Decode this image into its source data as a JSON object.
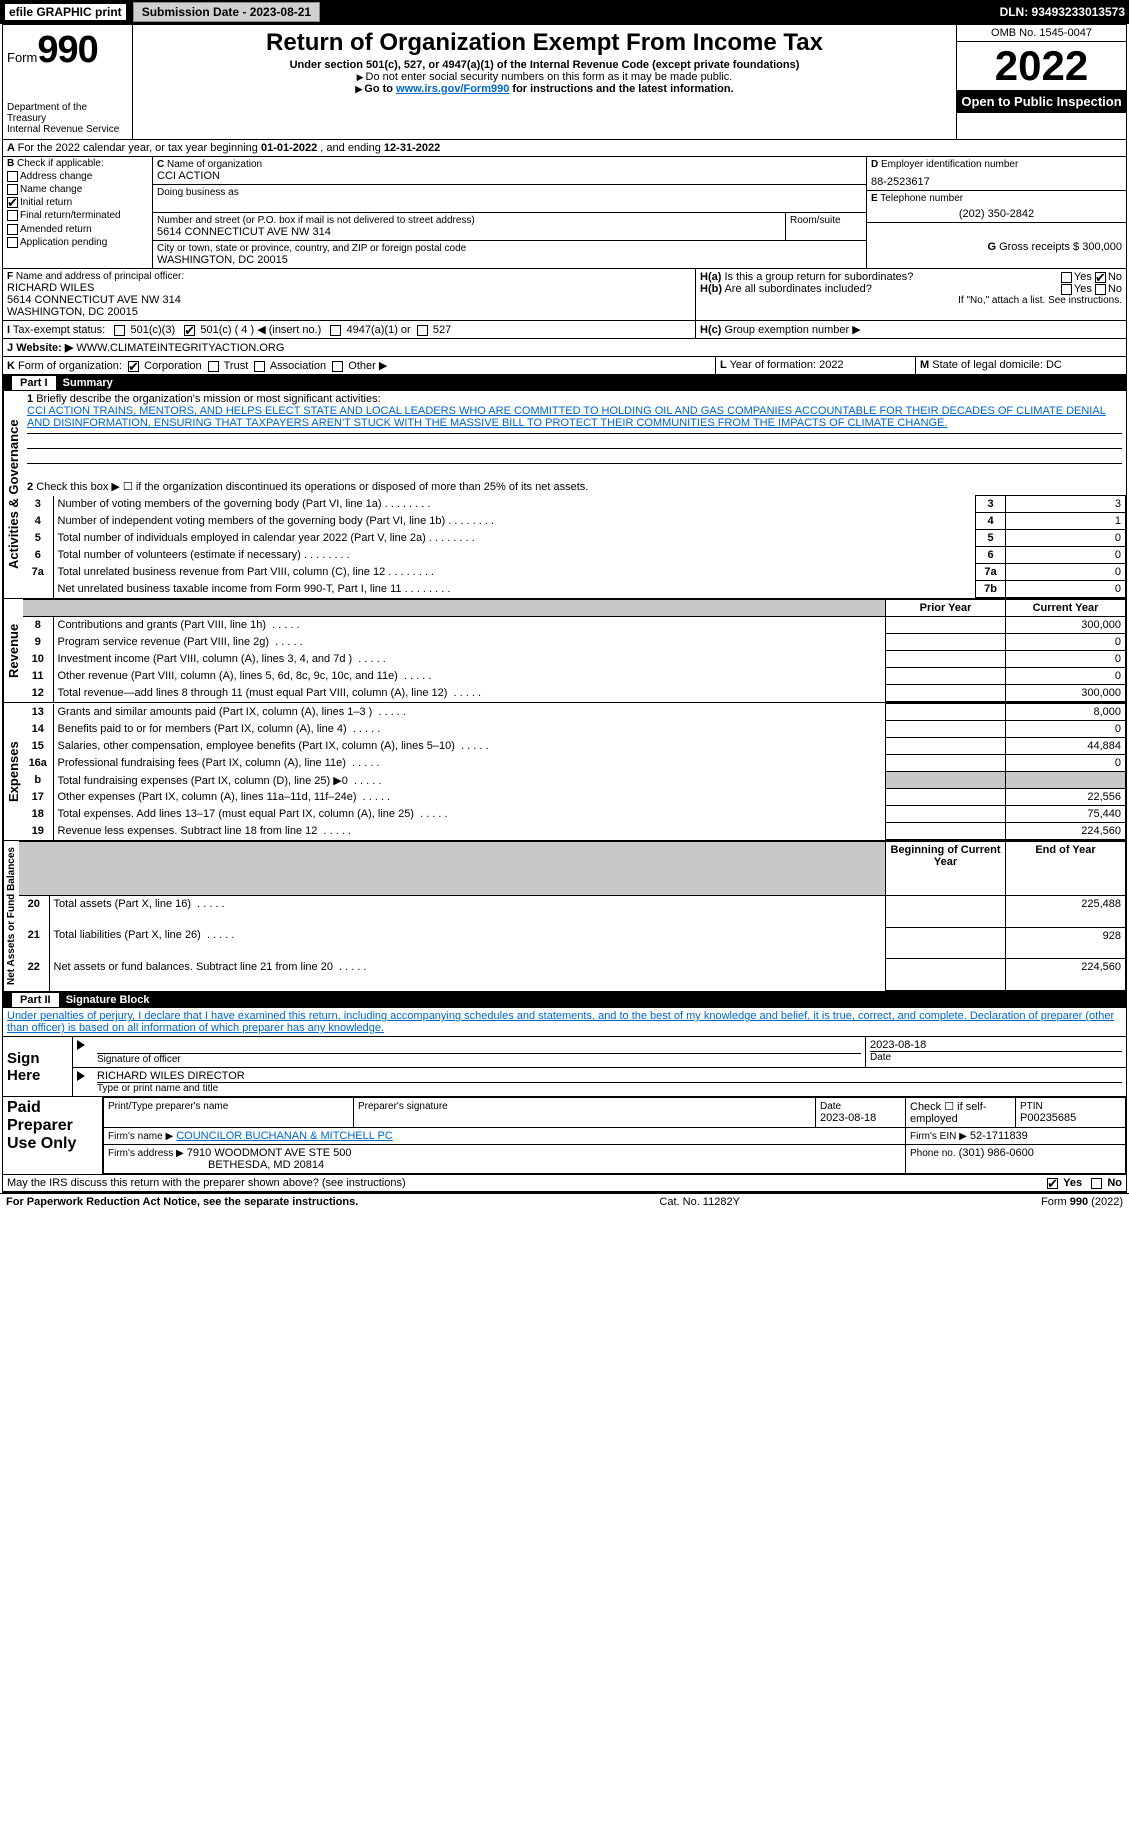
{
  "topbar": {
    "efile": "efile GRAPHIC print",
    "submission_label": "Submission Date - 2023-08-21",
    "dln": "DLN: 93493233013573"
  },
  "header": {
    "form_word": "Form",
    "form_num": "990",
    "dept": "Department of the Treasury",
    "irs": "Internal Revenue Service",
    "title": "Return of Organization Exempt From Income Tax",
    "subtitle": "Under section 501(c), 527, or 4947(a)(1) of the Internal Revenue Code (except private foundations)",
    "note1": "Do not enter social security numbers on this form as it may be made public.",
    "note2_pre": "Go to ",
    "note2_link": "www.irs.gov/Form990",
    "note2_post": " for instructions and the latest information.",
    "omb": "OMB No. 1545-0047",
    "year": "2022",
    "open": "Open to Public Inspection"
  },
  "lineA": {
    "text_pre": "For the 2022 calendar year, or tax year beginning ",
    "begin": "01-01-2022",
    "mid": " , and ending ",
    "end": "12-31-2022"
  },
  "sectionB": {
    "label": "Check if applicable:",
    "items": [
      "Address change",
      "Name change",
      "Initial return",
      "Final return/terminated",
      "Amended return",
      "Application pending"
    ],
    "checked_idx": 2
  },
  "sectionC": {
    "label": "Name of organization",
    "name": "CCI ACTION",
    "dba_label": "Doing business as",
    "addr_label": "Number and street (or P.O. box if mail is not delivered to street address)",
    "room_label": "Room/suite",
    "addr": "5614 CONNECTICUT AVE NW 314",
    "city_label": "City or town, state or province, country, and ZIP or foreign postal code",
    "city": "WASHINGTON, DC  20015"
  },
  "sectionD": {
    "label": "Employer identification number",
    "value": "88-2523617"
  },
  "sectionE": {
    "label": "Telephone number",
    "value": "(202) 350-2842"
  },
  "sectionG": {
    "label": "Gross receipts $",
    "value": "300,000"
  },
  "sectionF": {
    "label": "Name and address of principal officer:",
    "name": "RICHARD WILES",
    "addr1": "5614 CONNECTICUT AVE NW 314",
    "addr2": "WASHINGTON, DC  20015"
  },
  "sectionH": {
    "a": "Is this a group return for subordinates?",
    "b": "Are all subordinates included?",
    "note": "If \"No,\" attach a list. See instructions.",
    "c": "Group exemption number ▶",
    "yes": "Yes",
    "no": "No"
  },
  "sectionI": {
    "label": "Tax-exempt status:",
    "opts": [
      "501(c)(3)",
      "501(c) ( 4 ) ◀ (insert no.)",
      "4947(a)(1) or",
      "527"
    ],
    "checked_idx": 1
  },
  "sectionJ": {
    "label": "Website: ▶",
    "value": "WWW.CLIMATEINTEGRITYACTION.ORG"
  },
  "sectionK": {
    "label": "Form of organization:",
    "opts": [
      "Corporation",
      "Trust",
      "Association",
      "Other ▶"
    ],
    "checked_idx": 0
  },
  "sectionL": {
    "label": "Year of formation:",
    "value": "2022"
  },
  "sectionM": {
    "label": "State of legal domicile:",
    "value": "DC"
  },
  "part1": {
    "title": "Part I",
    "name": "Summary",
    "q1": "Briefly describe the organization's mission or most significant activities:",
    "mission": "CCI ACTION TRAINS, MENTORS, AND HELPS ELECT STATE AND LOCAL LEADERS WHO ARE COMMITTED TO HOLDING OIL AND GAS COMPANIES ACCOUNTABLE FOR THEIR DECADES OF CLIMATE DENIAL AND DISINFORMATION, ENSURING THAT TAXPAYERS AREN'T STUCK WITH THE MASSIVE BILL TO PROTECT THEIR COMMUNITIES FROM THE IMPACTS OF CLIMATE CHANGE.",
    "q2": "Check this box ▶ ☐ if the organization discontinued its operations or disposed of more than 25% of its net assets.",
    "lines_ag": [
      {
        "n": "3",
        "t": "Number of voting members of the governing body (Part VI, line 1a)",
        "box": "3",
        "v": "3"
      },
      {
        "n": "4",
        "t": "Number of independent voting members of the governing body (Part VI, line 1b)",
        "box": "4",
        "v": "1"
      },
      {
        "n": "5",
        "t": "Total number of individuals employed in calendar year 2022 (Part V, line 2a)",
        "box": "5",
        "v": "0"
      },
      {
        "n": "6",
        "t": "Total number of volunteers (estimate if necessary)",
        "box": "6",
        "v": "0"
      },
      {
        "n": "7a",
        "t": "Total unrelated business revenue from Part VIII, column (C), line 12",
        "box": "7a",
        "v": "0"
      },
      {
        "n": "",
        "t": "Net unrelated business taxable income from Form 990-T, Part I, line 11",
        "box": "7b",
        "v": "0"
      }
    ],
    "col_prior": "Prior Year",
    "col_curr": "Current Year",
    "lines_rev": [
      {
        "n": "8",
        "t": "Contributions and grants (Part VIII, line 1h)",
        "p": "",
        "c": "300,000"
      },
      {
        "n": "9",
        "t": "Program service revenue (Part VIII, line 2g)",
        "p": "",
        "c": "0"
      },
      {
        "n": "10",
        "t": "Investment income (Part VIII, column (A), lines 3, 4, and 7d )",
        "p": "",
        "c": "0"
      },
      {
        "n": "11",
        "t": "Other revenue (Part VIII, column (A), lines 5, 6d, 8c, 9c, 10c, and 11e)",
        "p": "",
        "c": "0"
      },
      {
        "n": "12",
        "t": "Total revenue—add lines 8 through 11 (must equal Part VIII, column (A), line 12)",
        "p": "",
        "c": "300,000"
      }
    ],
    "lines_exp": [
      {
        "n": "13",
        "t": "Grants and similar amounts paid (Part IX, column (A), lines 1–3 )",
        "p": "",
        "c": "8,000"
      },
      {
        "n": "14",
        "t": "Benefits paid to or for members (Part IX, column (A), line 4)",
        "p": "",
        "c": "0"
      },
      {
        "n": "15",
        "t": "Salaries, other compensation, employee benefits (Part IX, column (A), lines 5–10)",
        "p": "",
        "c": "44,884"
      },
      {
        "n": "16a",
        "t": "Professional fundraising fees (Part IX, column (A), line 11e)",
        "p": "",
        "c": "0"
      },
      {
        "n": "b",
        "t": "Total fundraising expenses (Part IX, column (D), line 25) ▶0",
        "p": "shade",
        "c": "shade"
      },
      {
        "n": "17",
        "t": "Other expenses (Part IX, column (A), lines 11a–11d, 11f–24e)",
        "p": "",
        "c": "22,556"
      },
      {
        "n": "18",
        "t": "Total expenses. Add lines 13–17 (must equal Part IX, column (A), line 25)",
        "p": "",
        "c": "75,440"
      },
      {
        "n": "19",
        "t": "Revenue less expenses. Subtract line 18 from line 12",
        "p": "",
        "c": "224,560"
      }
    ],
    "col_begin": "Beginning of Current Year",
    "col_end": "End of Year",
    "lines_na": [
      {
        "n": "20",
        "t": "Total assets (Part X, line 16)",
        "p": "",
        "c": "225,488"
      },
      {
        "n": "21",
        "t": "Total liabilities (Part X, line 26)",
        "p": "",
        "c": "928"
      },
      {
        "n": "22",
        "t": "Net assets or fund balances. Subtract line 21 from line 20",
        "p": "",
        "c": "224,560"
      }
    ]
  },
  "vlabels": {
    "ag": "Activities & Governance",
    "rev": "Revenue",
    "exp": "Expenses",
    "na": "Net Assets or Fund Balances"
  },
  "part2": {
    "title": "Part II",
    "name": "Signature Block",
    "decl": "Under penalties of perjury, I declare that I have examined this return, including accompanying schedules and statements, and to the best of my knowledge and belief, it is true, correct, and complete. Declaration of preparer (other than officer) is based on all information of which preparer has any knowledge.",
    "sign_here": "Sign Here",
    "sig_officer": "Signature of officer",
    "date": "Date",
    "sig_date": "2023-08-18",
    "name_title": "RICHARD WILES  DIRECTOR",
    "type_name": "Type or print name and title",
    "paid": "Paid Preparer Use Only",
    "pp_name_lbl": "Print/Type preparer's name",
    "pp_sig_lbl": "Preparer's signature",
    "pp_date_lbl": "Date",
    "pp_date": "2023-08-18",
    "pp_check": "Check ☐ if self-employed",
    "ptin_lbl": "PTIN",
    "ptin": "P00235685",
    "firm_name_lbl": "Firm's name   ▶",
    "firm_name": "COUNCILOR BUCHANAN & MITCHELL PC",
    "firm_ein_lbl": "Firm's EIN ▶",
    "firm_ein": "52-1711839",
    "firm_addr_lbl": "Firm's address ▶",
    "firm_addr1": "7910 WOODMONT AVE STE 500",
    "firm_addr2": "BETHESDA, MD  20814",
    "phone_lbl": "Phone no.",
    "phone": "(301) 986-0600",
    "discuss": "May the IRS discuss this return with the preparer shown above? (see instructions)",
    "yes": "Yes",
    "no": "No"
  },
  "footer": {
    "left": "For Paperwork Reduction Act Notice, see the separate instructions.",
    "mid": "Cat. No. 11282Y",
    "right": "Form 990 (2022)"
  }
}
